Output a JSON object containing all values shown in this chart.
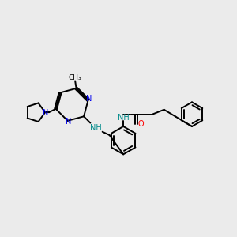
{
  "bg_color": "#ebebeb",
  "bond_color": "#000000",
  "n_color": "#0000ee",
  "o_color": "#ff0000",
  "nh_color": "#008b8b",
  "line_width": 1.4,
  "font_size": 7.0,
  "fig_w": 3.0,
  "fig_h": 3.0,
  "dpi": 100,
  "xlim": [
    0,
    10
  ],
  "ylim": [
    0,
    10
  ]
}
